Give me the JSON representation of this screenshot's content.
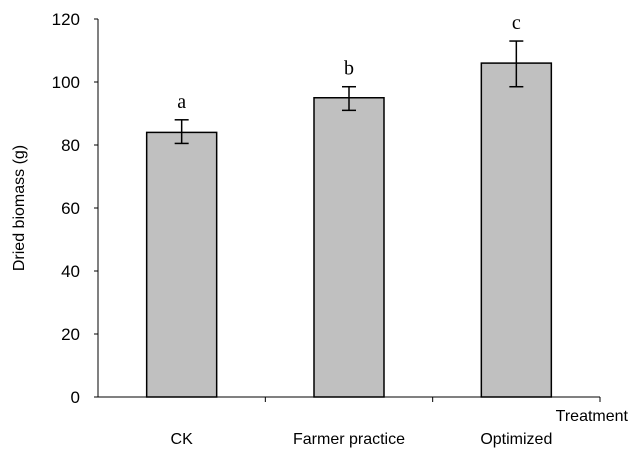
{
  "chart_data": {
    "type": "bar",
    "categories": [
      "CK",
      "Farmer practice",
      "Optimized"
    ],
    "values": [
      84,
      95,
      106
    ],
    "errors_upper": [
      88,
      98.5,
      113
    ],
    "errors_lower": [
      80.5,
      91,
      98.5
    ],
    "significance_letters": [
      "a",
      "b",
      "c"
    ],
    "xlabel": "Treatment",
    "ylabel": "Dried biomass (g)",
    "ylim": [
      0,
      120
    ],
    "yticks": [
      0,
      20,
      40,
      60,
      80,
      100,
      120
    ],
    "grid": false,
    "legend": "none",
    "colors": {
      "bar_fill": "#c0c0c0",
      "outline": "#000000"
    }
  }
}
